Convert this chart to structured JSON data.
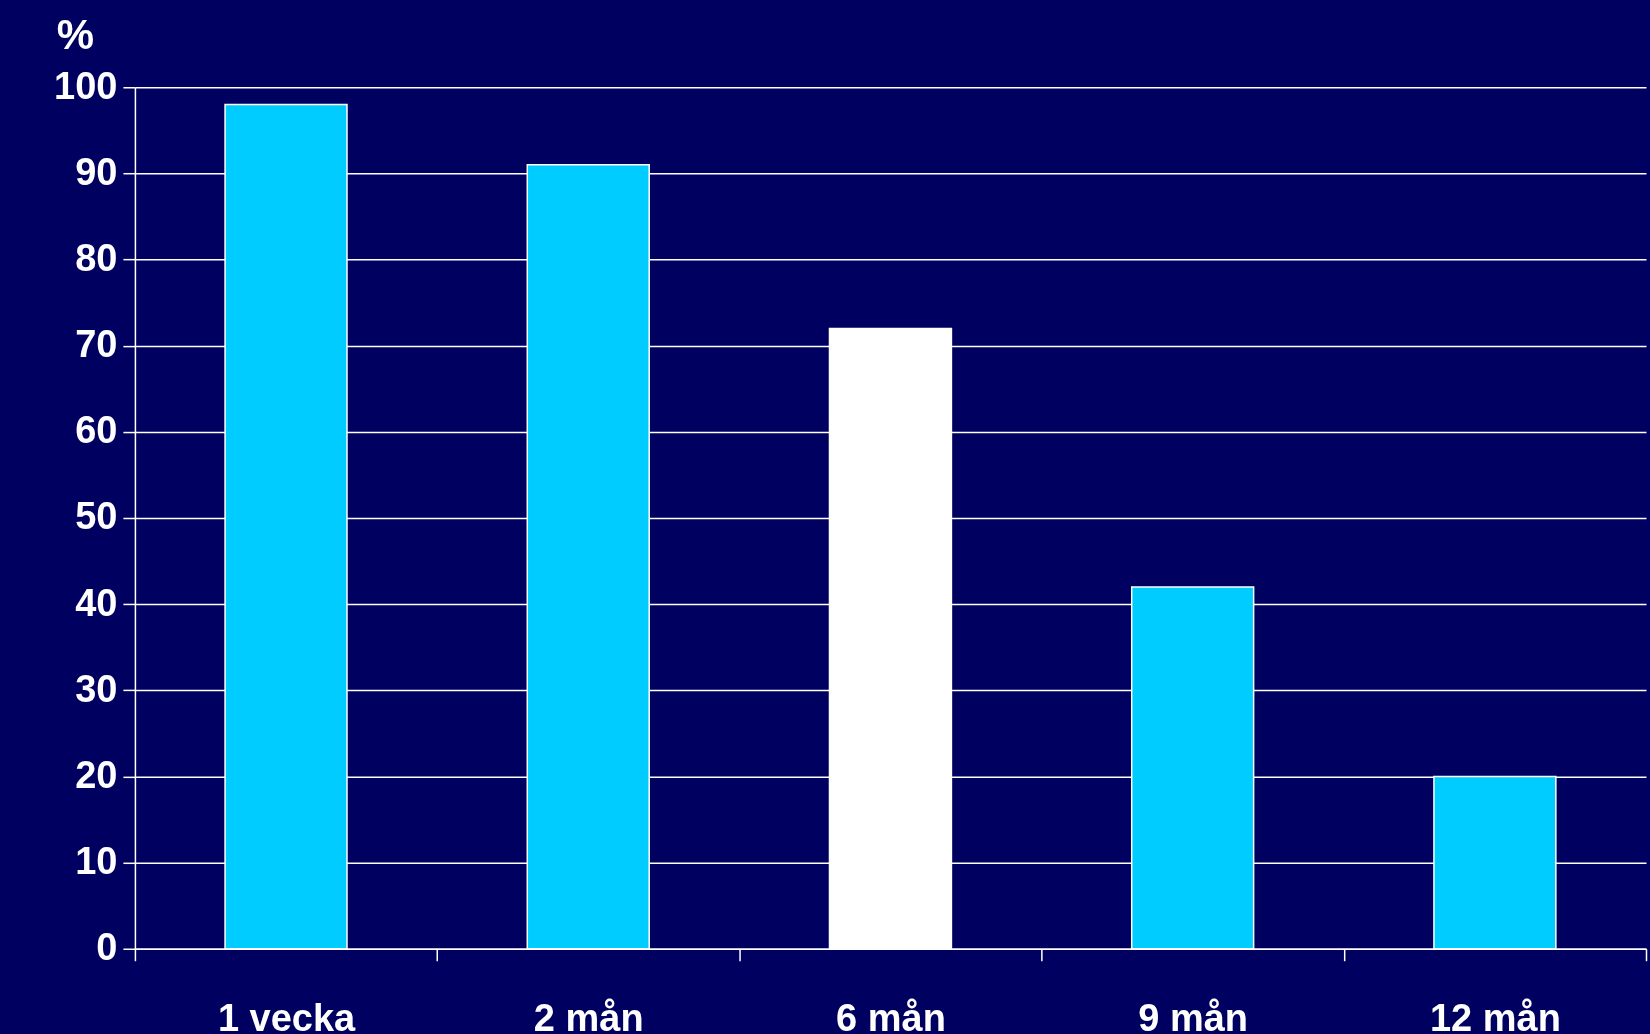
{
  "chart_data": {
    "type": "bar",
    "ylabel": "%",
    "categories": [
      "1 vecka",
      "2 mån",
      "6 mån",
      "9 mån",
      "12 mån"
    ],
    "values": [
      98,
      91,
      72,
      42,
      20
    ],
    "colors": [
      "#00ccff",
      "#00ccff",
      "#ffffff",
      "#00ccff",
      "#00ccff"
    ],
    "ylim": [
      0,
      100
    ],
    "yticks": [
      0,
      10,
      20,
      30,
      40,
      50,
      60,
      70,
      80,
      90,
      100
    ],
    "grid": "y"
  }
}
